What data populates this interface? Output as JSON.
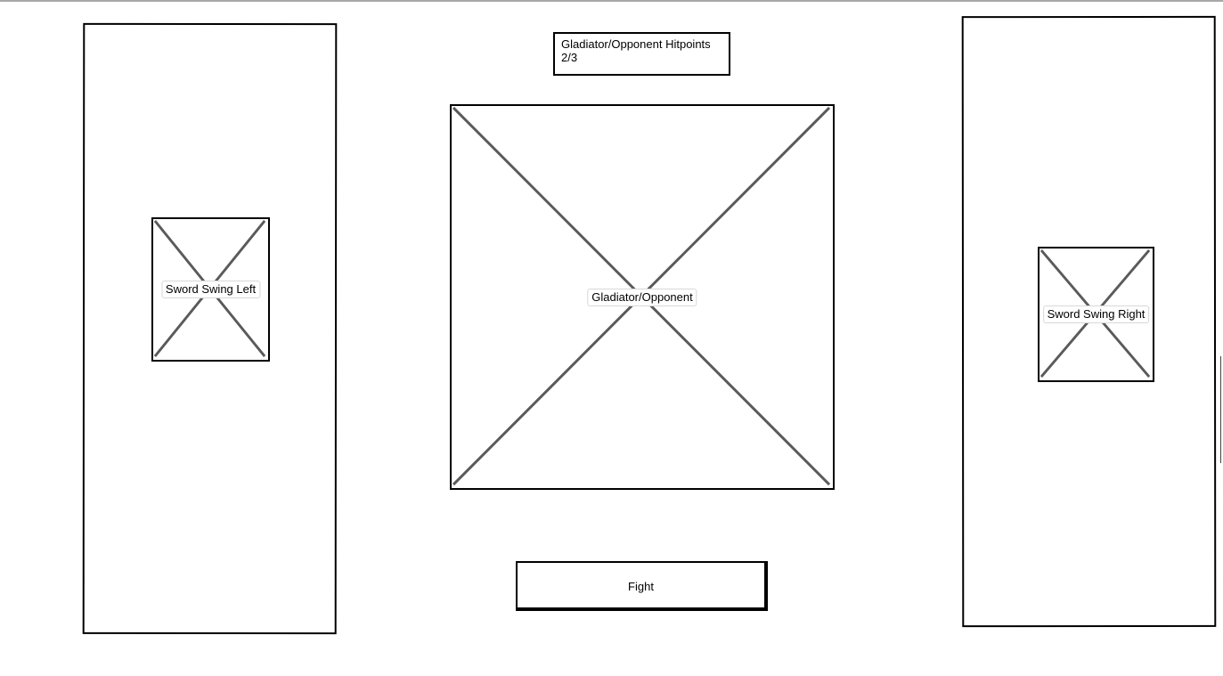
{
  "hitpoints": {
    "title": "Gladiator/Opponent Hitpoints",
    "value": "2/3"
  },
  "left_panel": {
    "image_label": "Sword Swing Left"
  },
  "center": {
    "image_label": "Gladiator/Opponent"
  },
  "right_panel": {
    "image_label": "Sword Swing Right"
  },
  "actions": {
    "fight_label": "Fight"
  },
  "icons": {
    "placeholder": "image-placeholder-icon"
  },
  "colors": {
    "border": "#000000",
    "cross": "#5a5a5a",
    "background": "#ffffff"
  }
}
